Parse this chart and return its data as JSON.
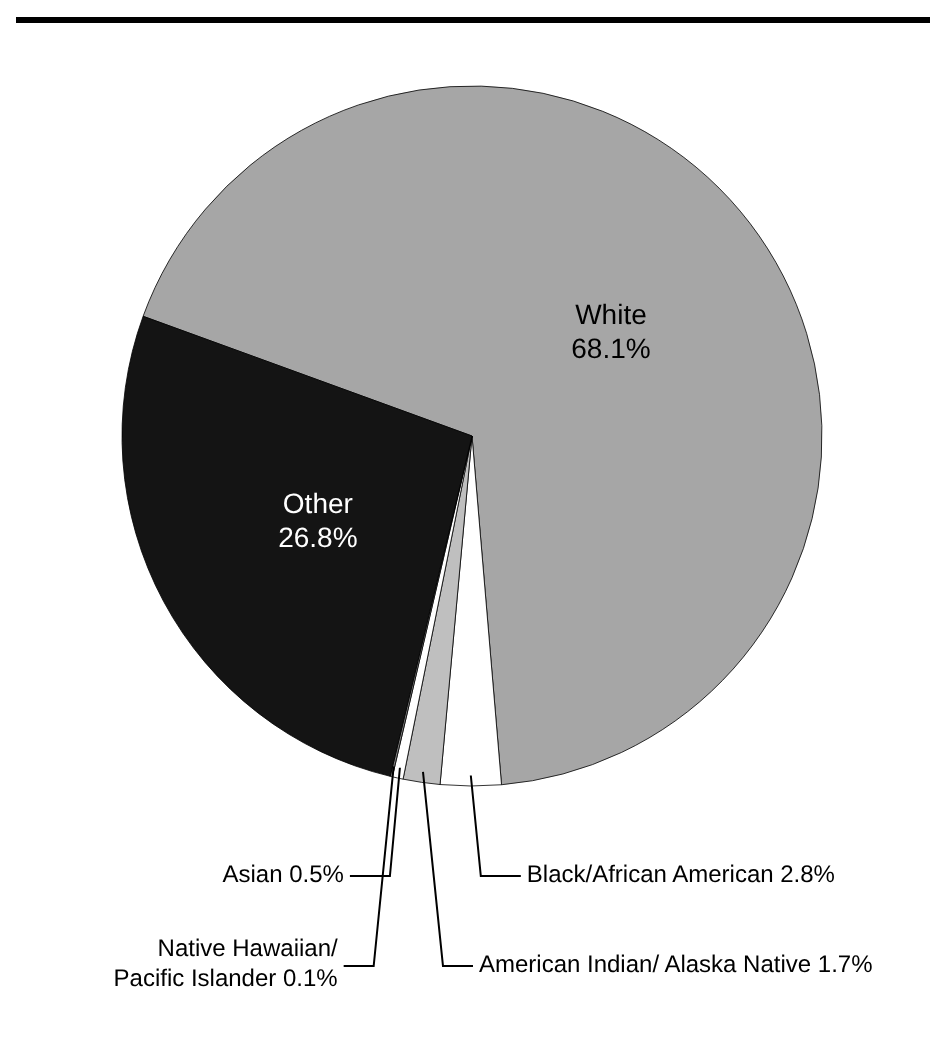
{
  "chart_data": {
    "type": "pie",
    "categories": [
      "White",
      "Black/African American",
      "American Indian/ Alaska Native",
      "Asian",
      "Native Hawaiian/ Pacific Islander",
      "Other"
    ],
    "values": [
      68.1,
      2.8,
      1.7,
      0.5,
      0.1,
      26.8
    ],
    "value_labels": [
      "68.1%",
      "2.8%",
      "1.7%",
      "0.5%",
      "0.1%",
      "26.8%"
    ],
    "colors": [
      "#a6a6a6",
      "#ffffff",
      "#bfbfbf",
      "#ffffff",
      "#808080",
      "#141414"
    ]
  }
}
